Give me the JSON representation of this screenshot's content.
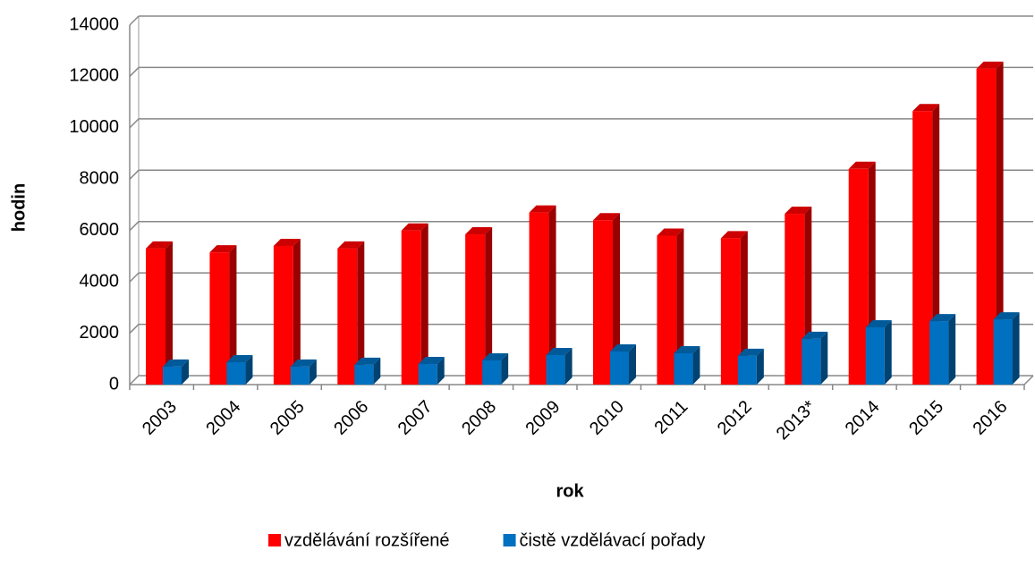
{
  "chart_data": {
    "type": "bar3d",
    "y_label": "hodin",
    "x_label": "rok",
    "categories": [
      "2003",
      "2004",
      "2005",
      "2006",
      "2007",
      "2008",
      "2009",
      "2010",
      "2011",
      "2012",
      "2013*",
      "2014",
      "2015",
      "2016"
    ],
    "series": [
      {
        "name": "vzdělávání rozšířené",
        "color": "#ff0000",
        "values": [
          5300,
          5150,
          5400,
          5300,
          6000,
          5850,
          6700,
          6400,
          5800,
          5700,
          6650,
          8400,
          10650,
          12300
        ]
      },
      {
        "name": "čistě vzdělávací pořady",
        "color": "#0070c0",
        "values": [
          700,
          870,
          700,
          770,
          800,
          940,
          1150,
          1290,
          1220,
          1120,
          1780,
          2230,
          2470,
          2540
        ]
      }
    ],
    "ylim": [
      0,
      14000
    ],
    "yticks": [
      0,
      2000,
      4000,
      6000,
      8000,
      10000,
      12000,
      14000
    ],
    "grid": true,
    "legend": "bottom"
  }
}
